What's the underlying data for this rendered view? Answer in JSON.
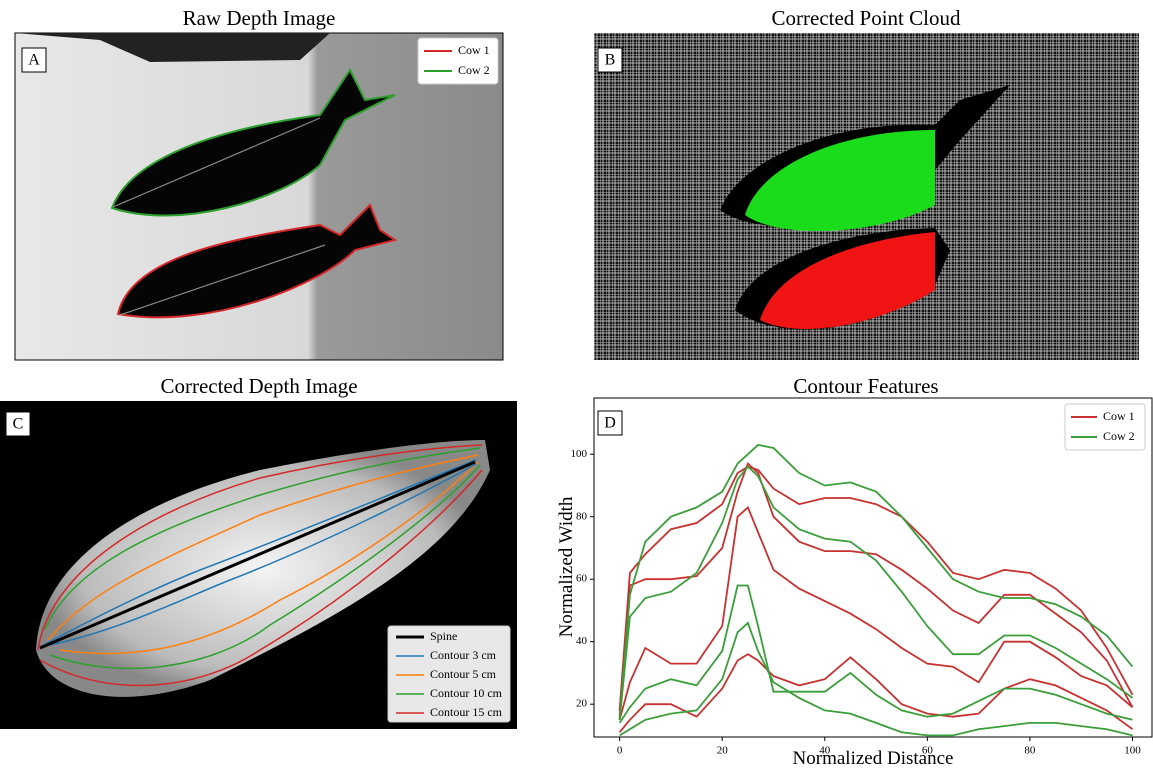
{
  "panels": {
    "a": {
      "title": "Raw Depth Image",
      "letter": "A",
      "legend": [
        {
          "label": "Cow 1",
          "color": "#d62728"
        },
        {
          "label": "Cow 2",
          "color": "#2ca02c"
        }
      ]
    },
    "b": {
      "title": "Corrected Point Cloud",
      "letter": "B"
    },
    "c": {
      "title": "Corrected Depth Image",
      "letter": "C",
      "legend": [
        {
          "label": "Spine",
          "color": "#000000"
        },
        {
          "label": "Contour 3 cm",
          "color": "#1f77b4"
        },
        {
          "label": "Contour 5 cm",
          "color": "#ff7f0e"
        },
        {
          "label": "Contour 10 cm",
          "color": "#2ca02c"
        },
        {
          "label": "Contour 15 cm",
          "color": "#d62728"
        }
      ]
    }
  },
  "chart_data": {
    "type": "line",
    "title": "Contour Features",
    "letter": "D",
    "xlabel": "Normalized Distance",
    "ylabel": "Normalized Width",
    "x": [
      0,
      2,
      5,
      10,
      15,
      20,
      23,
      25,
      27,
      30,
      35,
      40,
      45,
      50,
      55,
      60,
      65,
      70,
      75,
      80,
      85,
      90,
      95,
      100
    ],
    "xlim": [
      -5,
      104
    ],
    "ylim": [
      9.5,
      118
    ],
    "xticks": [
      0,
      20,
      40,
      60,
      80,
      100
    ],
    "yticks": [
      20,
      40,
      60,
      80,
      100
    ],
    "legend": "upper right",
    "series": [
      {
        "name": "Cow 1",
        "color": "#c8312f",
        "lines": [
          [
            18,
            62,
            68,
            76,
            78,
            84,
            94,
            96,
            95,
            89,
            84,
            86,
            86,
            84,
            80,
            72,
            62,
            60,
            63,
            62,
            57,
            50,
            38,
            23
          ],
          [
            16,
            58,
            60,
            60,
            61,
            70,
            88,
            97,
            94,
            80,
            72,
            69,
            69,
            68,
            63,
            57,
            50,
            46,
            55,
            55,
            49,
            43,
            34,
            19
          ],
          [
            15,
            27,
            38,
            33,
            33,
            45,
            80,
            83,
            75,
            63,
            57,
            53,
            49,
            44,
            38,
            33,
            32,
            27,
            40,
            40,
            35,
            29,
            26,
            19
          ],
          [
            11,
            15,
            20,
            20,
            16,
            25,
            34,
            36,
            34,
            29,
            26,
            28,
            35,
            28,
            20,
            17,
            16,
            17,
            25,
            28,
            26,
            22,
            18,
            12
          ]
        ]
      },
      {
        "name": "Cow 2",
        "color": "#3a9e3a",
        "lines": [
          [
            15,
            55,
            72,
            80,
            83,
            88,
            97,
            100,
            103,
            102,
            94,
            90,
            91,
            88,
            80,
            70,
            60,
            56,
            54,
            54,
            52,
            48,
            42,
            32
          ],
          [
            15,
            48,
            54,
            56,
            62,
            78,
            92,
            96,
            93,
            83,
            76,
            73,
            72,
            66,
            56,
            45,
            36,
            36,
            42,
            42,
            38,
            33,
            28,
            22
          ],
          [
            14,
            19,
            25,
            28,
            26,
            37,
            58,
            58,
            45,
            24,
            24,
            24,
            30,
            23,
            18,
            16,
            17,
            21,
            25,
            25,
            23,
            20,
            17,
            15
          ],
          [
            10,
            12,
            15,
            17,
            18,
            28,
            43,
            46,
            37,
            27,
            22,
            18,
            17,
            14,
            11,
            10,
            10,
            12,
            13,
            14,
            14,
            13,
            12,
            10
          ]
        ]
      }
    ]
  }
}
